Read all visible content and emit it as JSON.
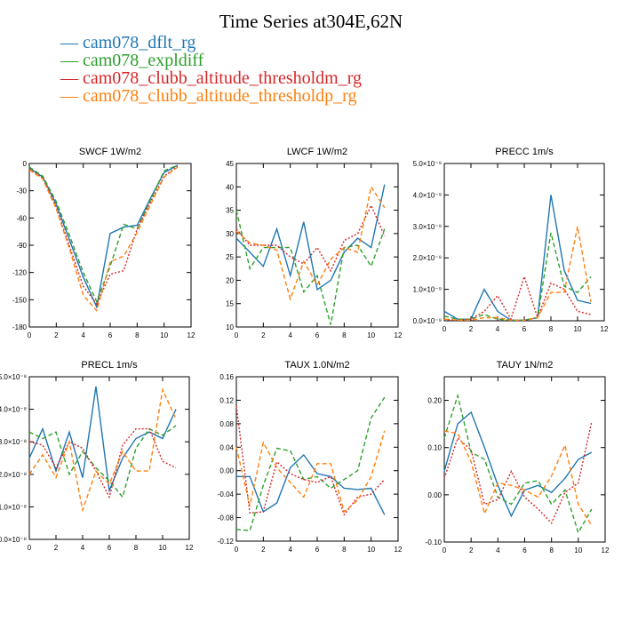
{
  "title": "Time Series at304E,62N",
  "legend": [
    {
      "label": "cam078_dflt_rg",
      "color": "#1f77b4",
      "dash": "solid"
    },
    {
      "label": "cam078_expldiff",
      "color": "#2ca02c",
      "dash": "dashed"
    },
    {
      "label": "cam078_clubb_altitude_thresholdm_rg",
      "color": "#d62728",
      "dash": "dotted"
    },
    {
      "label": "cam078_clubb_altitude_thresholdp_rg",
      "color": "#ff7f0e",
      "dash": "dashed"
    }
  ],
  "chart_data": [
    {
      "type": "line",
      "title": "SWCF   1W/m2",
      "x": [
        0,
        1,
        2,
        3,
        4,
        5,
        6,
        7,
        8,
        9,
        10,
        11
      ],
      "xlim": [
        0,
        12
      ],
      "ylim": [
        -180,
        0
      ],
      "yticks": [
        0,
        -30,
        -60,
        -90,
        -120,
        -150,
        -180
      ],
      "ytick_labels": [
        "0",
        "-30",
        "-60",
        "-90",
        "-120",
        "-150",
        "-180"
      ],
      "xticks": [
        0,
        2,
        4,
        6,
        8,
        10,
        12
      ],
      "xtick_labels": [
        "0",
        "2",
        "4",
        "6",
        "8",
        "10",
        "12"
      ],
      "series": [
        {
          "name": "cam078_dflt_rg",
          "values": [
            -5,
            -15,
            -45,
            -85,
            -125,
            -158,
            -77,
            -70,
            -68,
            -38,
            -10,
            -2
          ]
        },
        {
          "name": "cam078_expldiff",
          "values": [
            -4,
            -14,
            -42,
            -80,
            -120,
            -152,
            -113,
            -67,
            -72,
            -40,
            -8,
            -2
          ]
        },
        {
          "name": "cam078_clubb_altitude_thresholdm_rg",
          "values": [
            -6,
            -16,
            -48,
            -92,
            -135,
            -155,
            -122,
            -118,
            -72,
            -42,
            -14,
            -3
          ]
        },
        {
          "name": "cam078_clubb_altitude_thresholdp_rg",
          "values": [
            -7,
            -17,
            -50,
            -95,
            -145,
            -162,
            -108,
            -102,
            -76,
            -45,
            -15,
            -4
          ]
        }
      ]
    },
    {
      "type": "line",
      "title": "LWCF   1W/m2",
      "x": [
        0,
        1,
        2,
        3,
        4,
        5,
        6,
        7,
        8,
        9,
        10,
        11
      ],
      "xlim": [
        0,
        12
      ],
      "ylim": [
        10,
        45
      ],
      "yticks": [
        10,
        15,
        20,
        25,
        30,
        35,
        40,
        45
      ],
      "ytick_labels": [
        "10",
        "15",
        "20",
        "25",
        "30",
        "35",
        "40",
        "45"
      ],
      "xticks": [
        0,
        2,
        4,
        6,
        8,
        10,
        12
      ],
      "xtick_labels": [
        "0",
        "2",
        "4",
        "6",
        "8",
        "10",
        "12"
      ],
      "series": [
        {
          "name": "cam078_dflt_rg",
          "values": [
            29,
            26,
            23,
            31,
            21,
            32.5,
            18,
            20,
            26,
            29,
            27,
            40.5
          ]
        },
        {
          "name": "cam078_expldiff",
          "values": [
            35,
            22.5,
            27,
            27,
            27,
            17.5,
            21,
            10.5,
            27,
            27.5,
            23,
            31
          ]
        },
        {
          "name": "cam078_clubb_altitude_thresholdm_rg",
          "values": [
            31,
            27.5,
            27.5,
            27.5,
            25,
            23.5,
            27,
            22,
            28.5,
            30,
            36,
            29.5
          ]
        },
        {
          "name": "cam078_clubb_altitude_thresholdp_rg",
          "values": [
            30.5,
            28,
            27.5,
            26.5,
            16,
            24,
            19,
            24.5,
            27,
            26,
            40,
            35.5
          ]
        }
      ]
    },
    {
      "type": "line",
      "title": "PRECC   1m/s",
      "x": [
        0,
        1,
        2,
        3,
        4,
        5,
        6,
        7,
        8,
        9,
        10,
        11
      ],
      "xlim": [
        0,
        12
      ],
      "ylim": [
        0,
        5
      ],
      "yticks": [
        0,
        1,
        2,
        3,
        4,
        5
      ],
      "ytick_labels": [
        "0.0×10⁻⁹",
        "1.0×10⁻⁹",
        "2.0×10⁻⁹",
        "3.0×10⁻⁹",
        "4.0×10⁻⁹",
        "5.0×10⁻⁹"
      ],
      "xticks": [
        0,
        2,
        4,
        6,
        8,
        10,
        12
      ],
      "xtick_labels": [
        "0",
        "2",
        "4",
        "6",
        "8",
        "10",
        "12"
      ],
      "series": [
        {
          "name": "cam078_dflt_rg",
          "values": [
            0.3,
            0.05,
            0.05,
            1.0,
            0.3,
            0.02,
            0.02,
            0.1,
            4.0,
            1.6,
            0.65,
            0.55
          ]
        },
        {
          "name": "cam078_expldiff",
          "values": [
            0.15,
            0.05,
            0.05,
            0.2,
            0.05,
            0.02,
            0.02,
            0.1,
            2.8,
            1.1,
            0.9,
            1.4
          ]
        },
        {
          "name": "cam078_clubb_altitude_thresholdm_rg",
          "values": [
            0.05,
            0.02,
            0.05,
            0.3,
            0.8,
            0.05,
            1.4,
            0.1,
            1.2,
            1.0,
            0.3,
            0.2
          ]
        },
        {
          "name": "cam078_clubb_altitude_thresholdp_rg",
          "values": [
            0.05,
            0.02,
            0.02,
            0.1,
            0.1,
            0.02,
            0.02,
            0.1,
            0.9,
            0.9,
            3.0,
            0.6
          ]
        }
      ]
    },
    {
      "type": "line",
      "title": "PRECL   1m/s",
      "x": [
        0,
        1,
        2,
        3,
        4,
        5,
        6,
        7,
        8,
        9,
        10,
        11
      ],
      "xlim": [
        0,
        12
      ],
      "ylim": [
        0,
        5
      ],
      "yticks": [
        0,
        1,
        2,
        3,
        4,
        5
      ],
      "ytick_labels": [
        "0.0×10⁻⁸",
        "1.0×10⁻⁸",
        "2.0×10⁻⁸",
        "3.0×10⁻⁸",
        "4.0×10⁻⁸",
        "5.0×10⁻⁸"
      ],
      "xticks": [
        0,
        2,
        4,
        6,
        8,
        10,
        12
      ],
      "xtick_labels": [
        "0",
        "2",
        "4",
        "6",
        "8",
        "10",
        "12"
      ],
      "series": [
        {
          "name": "cam078_dflt_rg",
          "values": [
            2.5,
            3.4,
            2.1,
            3.3,
            1.9,
            4.7,
            1.5,
            2.5,
            3.1,
            3.3,
            3.1,
            4.0
          ]
        },
        {
          "name": "cam078_expldiff",
          "values": [
            3.3,
            3.1,
            3.3,
            2.0,
            2.7,
            2.2,
            1.8,
            1.3,
            2.8,
            3.4,
            3.2,
            3.5
          ]
        },
        {
          "name": "cam078_clubb_altitude_thresholdm_rg",
          "values": [
            3.0,
            2.9,
            2.2,
            3.0,
            2.8,
            2.1,
            1.3,
            2.9,
            3.4,
            3.4,
            2.4,
            2.2
          ]
        },
        {
          "name": "cam078_clubb_altitude_thresholdp_rg",
          "values": [
            2.0,
            2.6,
            1.9,
            3.0,
            0.9,
            2.1,
            1.7,
            2.7,
            2.1,
            2.1,
            4.6,
            3.7
          ]
        }
      ]
    },
    {
      "type": "line",
      "title": "TAUX   1.0N/m2",
      "x": [
        0,
        1,
        2,
        3,
        4,
        5,
        6,
        7,
        8,
        9,
        10,
        11
      ],
      "xlim": [
        0,
        12
      ],
      "ylim": [
        -0.12,
        0.16
      ],
      "yticks": [
        -0.12,
        -0.08,
        -0.04,
        0.0,
        0.04,
        0.08,
        0.12,
        0.16
      ],
      "ytick_labels": [
        "-0.12",
        "-0.08",
        "-0.04",
        "0.00",
        "0.04",
        "0.08",
        "0.12",
        "0.16"
      ],
      "xticks": [
        0,
        2,
        4,
        6,
        8,
        10,
        12
      ],
      "xtick_labels": [
        "0",
        "2",
        "4",
        "6",
        "8",
        "10",
        "12"
      ],
      "series": [
        {
          "name": "cam078_dflt_rg",
          "values": [
            -0.01,
            -0.01,
            -0.07,
            -0.055,
            0.005,
            0.027,
            -0.005,
            -0.01,
            -0.03,
            -0.032,
            -0.03,
            -0.075
          ]
        },
        {
          "name": "cam078_expldiff",
          "values": [
            -0.1,
            -0.102,
            -0.025,
            0.038,
            0.034,
            -0.015,
            -0.01,
            -0.03,
            -0.015,
            0.0,
            0.09,
            0.125
          ]
        },
        {
          "name": "cam078_clubb_altitude_thresholdm_rg",
          "values": [
            0.11,
            -0.072,
            -0.07,
            0.015,
            -0.005,
            -0.015,
            -0.02,
            -0.01,
            -0.075,
            -0.045,
            -0.04,
            -0.015
          ]
        },
        {
          "name": "cam078_clubb_altitude_thresholdp_rg",
          "values": [
            0.04,
            -0.06,
            0.048,
            0.005,
            -0.02,
            -0.045,
            0.012,
            0.012,
            -0.07,
            -0.05,
            -0.01,
            0.068
          ]
        }
      ]
    },
    {
      "type": "line",
      "title": "TAUY   1N/m2",
      "x": [
        0,
        1,
        2,
        3,
        4,
        5,
        6,
        7,
        8,
        9,
        10,
        11
      ],
      "xlim": [
        0,
        12
      ],
      "ylim": [
        -0.1,
        0.25
      ],
      "yticks": [
        -0.1,
        0.0,
        0.1,
        0.2
      ],
      "ytick_labels": [
        "-0.10",
        "0.00",
        "0.10",
        "0.20"
      ],
      "xticks": [
        0,
        2,
        4,
        6,
        8,
        10,
        12
      ],
      "xtick_labels": [
        "0",
        "2",
        "4",
        "6",
        "8",
        "10",
        "12"
      ],
      "series": [
        {
          "name": "cam078_dflt_rg",
          "values": [
            0.05,
            0.15,
            0.175,
            0.1,
            0.02,
            -0.045,
            0.01,
            0.02,
            0.005,
            0.035,
            0.075,
            0.09
          ]
        },
        {
          "name": "cam078_expldiff",
          "values": [
            0.12,
            0.21,
            0.09,
            0.075,
            -0.005,
            -0.02,
            0.025,
            0.03,
            -0.02,
            0.01,
            -0.08,
            -0.03
          ]
        },
        {
          "name": "cam078_clubb_altitude_thresholdm_rg",
          "values": [
            0.035,
            0.12,
            0.095,
            -0.02,
            -0.01,
            0.05,
            -0.005,
            -0.03,
            -0.06,
            0.005,
            0.025,
            0.155
          ]
        },
        {
          "name": "cam078_clubb_altitude_thresholdp_rg",
          "values": [
            0.135,
            0.13,
            0.07,
            -0.04,
            0.025,
            0.02,
            0.01,
            -0.005,
            0.04,
            0.105,
            -0.02,
            -0.065
          ]
        }
      ]
    }
  ]
}
